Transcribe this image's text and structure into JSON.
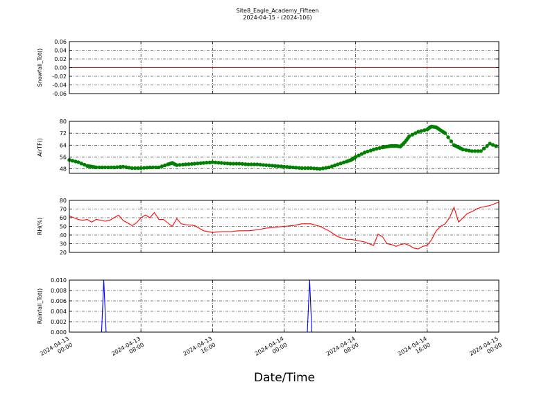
{
  "figure": {
    "title": "Site8_Eagle_Academy_Fifteen",
    "subtitle": "2024-04-15 - (2024-106)",
    "xlabel": "Date/Time"
  },
  "chart_data": [
    {
      "type": "line",
      "panel": "snowfall",
      "ylabel": "Snowfall_Tot()",
      "ylim": [
        -0.06,
        0.06
      ],
      "yticks": [
        "0.06",
        "0.04",
        "0.02",
        "0.00",
        "-0.02",
        "-0.04",
        "-0.06"
      ],
      "color": "#ff0000",
      "grid": true,
      "series": [
        {
          "x": [
            0,
            48
          ],
          "y": [
            0,
            0
          ]
        }
      ]
    },
    {
      "type": "line",
      "panel": "airtemp",
      "ylabel": "AirTF()",
      "ylim": [
        45,
        80
      ],
      "yticks": [
        "80",
        "72",
        "64",
        "56",
        "48"
      ],
      "color": "#008000",
      "markers": true,
      "grid": true,
      "series": [
        {
          "x": [
            0,
            1,
            2,
            2.5,
            3,
            4,
            5,
            6,
            7,
            8,
            9,
            10,
            11,
            11.5,
            12,
            13,
            14,
            15,
            16,
            17,
            18,
            19,
            20,
            21,
            22,
            23,
            24,
            25,
            26,
            27,
            28,
            29,
            30,
            31,
            31.5,
            32,
            33,
            34,
            35,
            35.5,
            36,
            36.5,
            37,
            37.5,
            38,
            39,
            40,
            40.3,
            40.5,
            41,
            41.5,
            42,
            43,
            43.5,
            44,
            45,
            46,
            47,
            48
          ],
          "y": [
            54,
            52.5,
            50,
            49.5,
            49,
            49,
            49,
            49.5,
            48.5,
            48.5,
            49,
            49,
            51,
            52,
            50.5,
            51,
            51.5,
            52,
            52.5,
            52,
            51.5,
            51.5,
            51,
            51,
            50.5,
            50,
            49.5,
            49,
            48.5,
            48.5,
            48,
            49,
            51,
            53,
            54,
            56,
            59,
            61,
            62.5,
            63,
            63.5,
            63.5,
            63,
            66,
            70,
            73,
            74.5,
            76,
            76.5,
            76,
            74,
            72,
            64,
            62.5,
            61,
            60,
            60,
            65,
            62.5
          ]
        }
      ]
    },
    {
      "type": "line",
      "panel": "rh",
      "ylabel": "RH(%)",
      "ylim": [
        20,
        80
      ],
      "yticks": [
        "80",
        "70",
        "60",
        "50",
        "40",
        "30",
        "20"
      ],
      "color": "#ff0000",
      "grid": true,
      "series": [
        {
          "x": [
            0,
            0.5,
            1,
            1.5,
            2,
            2.5,
            3,
            4,
            4.5,
            5,
            5.5,
            6,
            6.5,
            7,
            7.5,
            8,
            8.5,
            9,
            9.5,
            10,
            10.5,
            11,
            11.5,
            12,
            12.5,
            13,
            14,
            15,
            16,
            17,
            18,
            19,
            20,
            21,
            22,
            23,
            24,
            25,
            26,
            27,
            28,
            29,
            30,
            31,
            31.5,
            32,
            33,
            34,
            34.5,
            35,
            35.5,
            36,
            36.5,
            37,
            37.5,
            38,
            38.5,
            39,
            39.5,
            40,
            40.5,
            41,
            41.5,
            42,
            42.5,
            43,
            43.5,
            44,
            44.5,
            45,
            45.5,
            46,
            47,
            48
          ],
          "y": [
            62,
            60,
            58,
            57,
            58,
            55,
            58,
            56,
            57,
            60,
            63,
            57,
            54,
            51,
            54,
            60,
            63,
            60,
            66,
            58,
            58,
            54,
            50,
            59,
            53,
            52,
            51,
            45,
            43,
            44,
            44,
            45,
            45,
            46,
            48,
            49,
            50,
            51,
            53,
            53,
            50,
            45,
            38,
            35,
            35,
            34,
            32,
            28,
            41,
            38,
            30,
            29,
            27,
            29,
            30,
            28,
            25,
            24,
            27,
            28,
            35,
            45,
            50,
            53,
            60,
            72,
            55,
            60,
            65,
            67,
            70,
            72,
            74,
            78
          ]
        }
      ]
    },
    {
      "type": "line",
      "panel": "rainfall",
      "ylabel": "Rainfall_Tot()",
      "ylim": [
        0,
        0.01
      ],
      "yticks": [
        "0.010",
        "0.008",
        "0.006",
        "0.004",
        "0.002",
        "0.000"
      ],
      "color": "#0000ff",
      "grid": true,
      "series": [
        {
          "x": [
            0,
            3.6,
            3.85,
            4.1,
            26.6,
            26.85,
            27.1,
            48
          ],
          "y": [
            0,
            0,
            0.01,
            0,
            0,
            0.01,
            0,
            0
          ]
        }
      ]
    }
  ],
  "xaxis": {
    "ticks": [
      {
        "hour": 0,
        "line1": "2024-04-13",
        "line2": "00:00"
      },
      {
        "hour": 8,
        "line1": "2024-04-13",
        "line2": "08:00"
      },
      {
        "hour": 16,
        "line1": "2024-04-13",
        "line2": "16:00"
      },
      {
        "hour": 24,
        "line1": "2024-04-14",
        "line2": "00:00"
      },
      {
        "hour": 32,
        "line1": "2024-04-14",
        "line2": "08:00"
      },
      {
        "hour": 40,
        "line1": "2024-04-14",
        "line2": "16:00"
      },
      {
        "hour": 48,
        "line1": "2024-04-15",
        "line2": "00:00"
      }
    ]
  }
}
